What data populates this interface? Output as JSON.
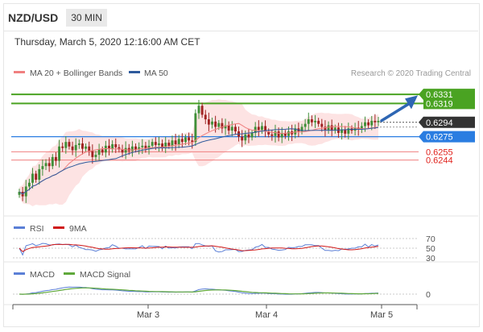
{
  "header": {
    "pair": "NZD/USD",
    "timeframe": "30 MIN",
    "timestamp": "Thursday, March 5, 2020 12:16:00 AM CET"
  },
  "legend": {
    "bollinger": "MA 20 + Bollinger Bands",
    "ma50": "MA 50",
    "credit": "Research © 2020 Trading Central",
    "rsi": "RSI",
    "rsi_ma": "9MA",
    "macd": "MACD",
    "macd_signal": "MACD Signal"
  },
  "colors": {
    "up": "#3f8f38",
    "down": "#a02222",
    "band_fill": "#fde3e3",
    "ma20": "#f08080",
    "ma50": "#2e5a9c",
    "resistance": "#4aa322",
    "pivot": "#2a7de1",
    "support": "#e0201a",
    "last": "#333333",
    "rsi": "#5b7fd6",
    "rsi_ma": "#d01818",
    "macd": "#5b7fd6",
    "macd_signal": "#5fa83a"
  },
  "chart_data": [
    {
      "type": "candlestick",
      "title": "NZD/USD 30 MIN",
      "x_ticks": [
        "Mar 3",
        "Mar 4",
        "Mar 5"
      ],
      "ylim": [
        0.617,
        0.6345
      ],
      "levels": {
        "resistance": [
          0.6331,
          0.6319
        ],
        "last": 0.6294,
        "pivot": 0.6275,
        "support": [
          0.6255,
          0.6244
        ]
      },
      "level_labels": {
        "r1": "0.6331",
        "r2": "0.6319",
        "last": "0.6294",
        "pivot": "0.6275",
        "s1": "0.6255",
        "s2": "0.6244"
      },
      "close": [
        0.6202,
        0.6196,
        0.6209,
        0.6214,
        0.6226,
        0.6218,
        0.6232,
        0.6236,
        0.624,
        0.6236,
        0.6248,
        0.6243,
        0.6262,
        0.626,
        0.6268,
        0.6262,
        0.6257,
        0.6264,
        0.6266,
        0.6259,
        0.6262,
        0.6256,
        0.6248,
        0.6251,
        0.6258,
        0.6254,
        0.6263,
        0.6259,
        0.6265,
        0.6261,
        0.6258,
        0.6254,
        0.626,
        0.6256,
        0.6262,
        0.6258,
        0.6261,
        0.6263,
        0.6259,
        0.6263,
        0.6268,
        0.6264,
        0.6266,
        0.6261,
        0.6267,
        0.6263,
        0.627,
        0.6265,
        0.6272,
        0.6268,
        0.6274,
        0.627,
        0.6268,
        0.6306,
        0.6316,
        0.6304,
        0.6298,
        0.6291,
        0.6295,
        0.6288,
        0.6293,
        0.6286,
        0.629,
        0.6283,
        0.6288,
        0.6282,
        0.6275,
        0.627,
        0.6278,
        0.6274,
        0.628,
        0.6288,
        0.6284,
        0.6289,
        0.6282,
        0.6278,
        0.6276,
        0.6282,
        0.6274,
        0.628,
        0.6276,
        0.6282,
        0.6278,
        0.6286,
        0.6282,
        0.6288,
        0.6292,
        0.6298,
        0.6294,
        0.6296,
        0.6292,
        0.6288,
        0.6284,
        0.629,
        0.6283,
        0.6287,
        0.628,
        0.6284,
        0.6279,
        0.6286,
        0.6283,
        0.6287,
        0.6285,
        0.6289,
        0.6294,
        0.629,
        0.6296,
        0.6294,
        0.6296
      ]
    },
    {
      "type": "line",
      "title": "RSI",
      "ylim": [
        30,
        70
      ],
      "y_ticks": [
        "70",
        "50",
        "30"
      ],
      "series": [
        {
          "name": "RSI"
        },
        {
          "name": "9MA"
        }
      ]
    },
    {
      "type": "line",
      "title": "MACD",
      "y_ticks": [
        "0"
      ],
      "series": [
        {
          "name": "MACD"
        },
        {
          "name": "MACD Signal"
        }
      ]
    }
  ]
}
